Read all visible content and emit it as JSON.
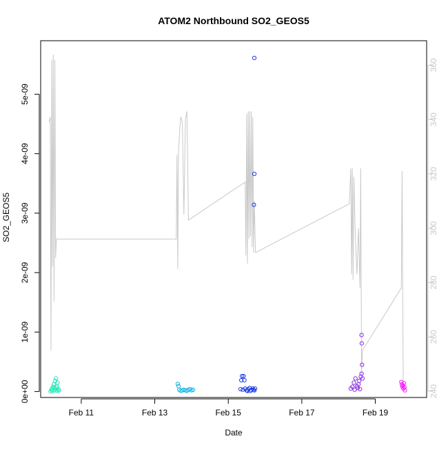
{
  "chart_data": {
    "type": "scatter",
    "title": "ATOM2 Northbound SO2_GEOS5",
    "xlabel": "Date",
    "ylabel": "SO2_GEOS5",
    "x_ticks": [
      "Feb 11",
      "Feb 13",
      "Feb 15",
      "Feb 17",
      "Feb 19"
    ],
    "y_ticks": [
      "0e+00",
      "1e-09",
      "2e-09",
      "3e-09",
      "4e-09",
      "5e-09"
    ],
    "y2_ticks": [
      "240",
      "260",
      "280",
      "300",
      "320",
      "340",
      "360"
    ],
    "x_range": [
      "Feb 9 21:30",
      "Feb 20 09:30"
    ],
    "ylim": [
      -1e-10,
      5.9e-09
    ],
    "y2lim": [
      237.7,
      369
    ],
    "colors": {
      "flight_track": "#c8c8c8",
      "y2_axis": "#c8c8c8",
      "flight_1": "#1de9b6",
      "flight_2": "#12b3e6",
      "flight_3": "#1a3be6",
      "flight_4": "#8a2be2",
      "flight_5": "#ff1aff"
    },
    "series": [
      {
        "color_key": "flight_1",
        "points": [
          [
            "Feb 10 04:00",
            0.0
          ],
          [
            "Feb 10 04:30",
            3e-11
          ],
          [
            "Feb 10 05:00",
            5e-11
          ],
          [
            "Feb 10 05:30",
            8e-11
          ],
          [
            "Feb 10 06:00",
            1.2e-10
          ],
          [
            "Feb 10 06:30",
            6e-11
          ],
          [
            "Feb 10 07:00",
            1.8e-10
          ],
          [
            "Feb 10 07:30",
            2.2e-10
          ],
          [
            "Feb 10 08:00",
            9e-11
          ],
          [
            "Feb 10 08:30",
            1.5e-10
          ],
          [
            "Feb 10 09:00",
            4e-11
          ],
          [
            "Feb 10 09:30",
            2e-11
          ],
          [
            "Feb 10 05:15",
            1e-11
          ],
          [
            "Feb 10 06:45",
            2e-11
          ],
          [
            "Feb 10 07:45",
            7e-11
          ],
          [
            "Feb 10 08:15",
            1e-11
          ]
        ]
      },
      {
        "color_key": "flight_2",
        "points": [
          [
            "Feb 13 15:00",
            1.3e-10
          ],
          [
            "Feb 13 15:30",
            9e-11
          ],
          [
            "Feb 13 16:00",
            3e-11
          ],
          [
            "Feb 13 17:00",
            1e-11
          ],
          [
            "Feb 13 18:00",
            2e-11
          ],
          [
            "Feb 13 19:00",
            3e-11
          ],
          [
            "Feb 13 20:00",
            2e-11
          ],
          [
            "Feb 13 21:00",
            1e-11
          ],
          [
            "Feb 13 22:00",
            3e-11
          ],
          [
            "Feb 13 23:00",
            4e-11
          ],
          [
            "Feb 14 00:00",
            2e-11
          ],
          [
            "Feb 14 01:00",
            3e-11
          ]
        ]
      },
      {
        "color_key": "flight_3",
        "points": [
          [
            "Feb 15 09:00",
            2.6e-10
          ],
          [
            "Feb 15 10:00",
            2.6e-10
          ],
          [
            "Feb 15 10:30",
            1.9e-10
          ],
          [
            "Feb 15 08:30",
            1.9e-10
          ],
          [
            "Feb 15 08:00",
            4e-11
          ],
          [
            "Feb 15 09:30",
            3e-11
          ],
          [
            "Feb 15 11:00",
            5e-11
          ],
          [
            "Feb 15 12:00",
            2e-11
          ],
          [
            "Feb 15 13:00",
            4e-11
          ],
          [
            "Feb 15 14:00",
            6e-11
          ],
          [
            "Feb 15 15:00",
            3e-11
          ],
          [
            "Feb 15 16:00",
            5e-11
          ],
          [
            "Feb 15 17:00",
            2e-11
          ],
          [
            "Feb 15 17:30",
            5e-11
          ],
          [
            "Feb 15 16:30",
            3e-11
          ],
          [
            "Feb 15 17:00",
            5.61e-09
          ],
          [
            "Feb 15 17:00",
            3.66e-09
          ],
          [
            "Feb 15 16:45",
            3.14e-09
          ],
          [
            "Feb 15 12:30",
            1e-11
          ],
          [
            "Feb 15 14:30",
            1e-11
          ]
        ]
      },
      {
        "color_key": "flight_4",
        "points": [
          [
            "Feb 18 08:00",
            5e-11
          ],
          [
            "Feb 18 09:00",
            8e-11
          ],
          [
            "Feb 18 10:00",
            1.5e-10
          ],
          [
            "Feb 18 11:00",
            2.2e-10
          ],
          [
            "Feb 18 12:00",
            9e-11
          ],
          [
            "Feb 18 13:00",
            1.2e-10
          ],
          [
            "Feb 18 14:00",
            4e-11
          ],
          [
            "Feb 18 14:30",
            2.5e-10
          ],
          [
            "Feb 18 15:00",
            3e-10
          ],
          [
            "Feb 18 15:20",
            4.5e-10
          ],
          [
            "Feb 18 15:10",
            8.1e-10
          ],
          [
            "Feb 18 15:00",
            9.5e-10
          ],
          [
            "Feb 18 15:40",
            2.2e-10
          ],
          [
            "Feb 18 13:30",
            1.8e-10
          ],
          [
            "Feb 18 12:30",
            6e-11
          ],
          [
            "Feb 18 10:30",
            3e-11
          ]
        ]
      },
      {
        "color_key": "flight_5",
        "points": [
          [
            "Feb 19 17:00",
            1.6e-10
          ],
          [
            "Feb 19 17:20",
            1.2e-10
          ],
          [
            "Feb 19 17:40",
            8e-11
          ],
          [
            "Feb 19 18:00",
            1e-10
          ],
          [
            "Feb 19 18:20",
            5e-11
          ],
          [
            "Feb 19 18:40",
            1.4e-10
          ],
          [
            "Feb 19 19:00",
            7e-11
          ],
          [
            "Feb 19 19:20",
            2e-11
          ]
        ]
      }
    ],
    "flight_track": {
      "axis": "right",
      "points": [
        [
          "Feb 10 03:00",
          339
        ],
        [
          "Feb 10 03:45",
          341
        ],
        [
          "Feb 10 04:15",
          255
        ],
        [
          "Feb 10 04:45",
          362
        ],
        [
          "Feb 10 05:15",
          286
        ],
        [
          "Feb 10 05:45",
          364
        ],
        [
          "Feb 10 06:15",
          273
        ],
        [
          "Feb 10 06:45",
          362
        ],
        [
          "Feb 10 07:15",
          289
        ],
        [
          "Feb 10 07:45",
          296
        ],
        [
          "Feb 13 14:00",
          296
        ],
        [
          "Feb 13 14:30",
          327
        ],
        [
          "Feb 13 15:00",
          285
        ],
        [
          "Feb 13 15:30",
          328
        ],
        [
          "Feb 13 16:15",
          336
        ],
        [
          "Feb 13 17:00",
          341
        ],
        [
          "Feb 13 18:00",
          339
        ],
        [
          "Feb 13 19:00",
          305
        ],
        [
          "Feb 13 20:00",
          340
        ],
        [
          "Feb 13 21:00",
          343
        ],
        [
          "Feb 13 22:00",
          303
        ],
        [
          "Feb 15 11:00",
          317
        ],
        [
          "Feb 15 11:30",
          290
        ],
        [
          "Feb 15 12:00",
          342
        ],
        [
          "Feb 15 12:30",
          287
        ],
        [
          "Feb 15 13:00",
          343
        ],
        [
          "Feb 15 13:30",
          296
        ],
        [
          "Feb 15 14:00",
          343
        ],
        [
          "Feb 15 14:30",
          297
        ],
        [
          "Feb 15 15:00",
          343
        ],
        [
          "Feb 15 15:30",
          293
        ],
        [
          "Feb 15 16:00",
          341
        ],
        [
          "Feb 15 16:30",
          291
        ],
        [
          "Feb 15 17:00",
          310
        ],
        [
          "Feb 15 17:45",
          291
        ],
        [
          "Feb 18 07:00",
          309
        ],
        [
          "Feb 18 08:00",
          322
        ],
        [
          "Feb 18 08:30",
          283
        ],
        [
          "Feb 18 09:00",
          322
        ],
        [
          "Feb 18 09:30",
          281
        ],
        [
          "Feb 18 10:00",
          319
        ],
        [
          "Feb 18 11:00",
          296
        ],
        [
          "Feb 18 12:00",
          283
        ],
        [
          "Feb 18 13:00",
          300
        ],
        [
          "Feb 18 14:00",
          278
        ],
        [
          "Feb 18 14:30",
          322
        ],
        [
          "Feb 18 15:00",
          246
        ],
        [
          "Feb 18 15:30",
          255
        ],
        [
          "Feb 19 17:00",
          278
        ],
        [
          "Feb 19 17:30",
          321
        ],
        [
          "Feb 19 18:15",
          240
        ]
      ]
    }
  }
}
